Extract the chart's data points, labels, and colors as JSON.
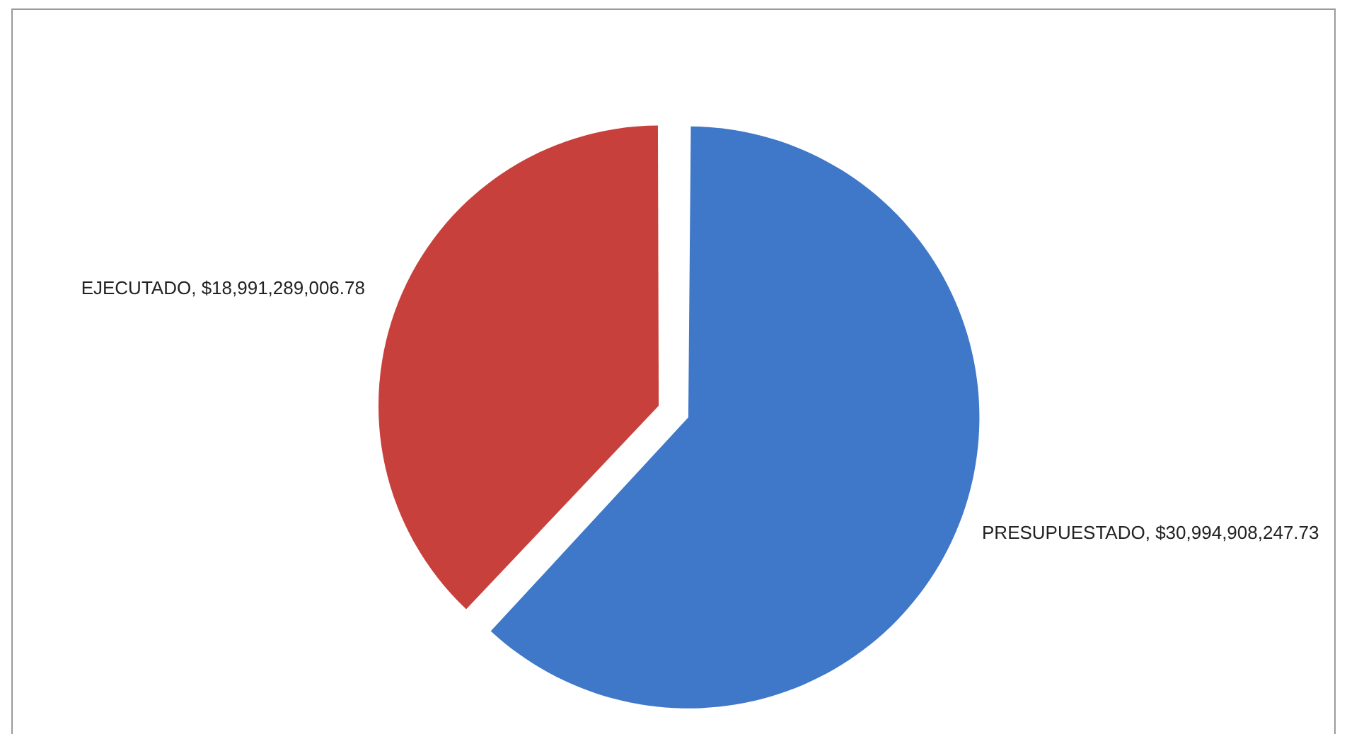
{
  "chart_data": {
    "type": "pie",
    "categories": [
      "PRESUPUESTADO",
      "EJECUTADO"
    ],
    "values": [
      30994908247.73,
      18991289006.78
    ],
    "colors": [
      "#3f78c8",
      "#c8403b"
    ],
    "value_labels": [
      "$30,994,908,247.73",
      "$18,991,289,006.78"
    ],
    "legend": false
  }
}
